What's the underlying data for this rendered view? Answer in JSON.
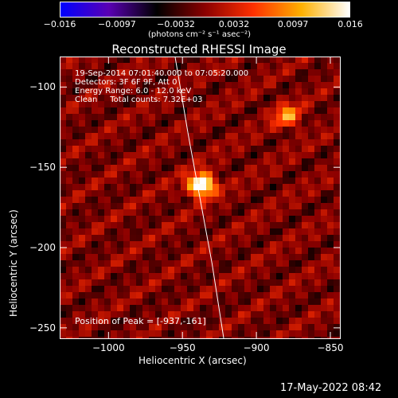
{
  "chart_data": {
    "type": "heatmap",
    "title": "Reconstructed RHESSI Image",
    "xlabel": "Heliocentric X (arcsec)",
    "ylabel": "Heliocentric Y (arcsec)",
    "xlim": [
      -1033,
      -843
    ],
    "ylim": [
      -257,
      -81
    ],
    "x_ticks": [
      {
        "label": "−1000",
        "value": -1000
      },
      {
        "label": "−950",
        "value": -950
      },
      {
        "label": "−900",
        "value": -900
      },
      {
        "label": "−850",
        "value": -850
      }
    ],
    "y_ticks": [
      {
        "label": "−100",
        "value": -100
      },
      {
        "label": "−150",
        "value": -150
      },
      {
        "label": "−200",
        "value": -200
      },
      {
        "label": "−250",
        "value": -250
      }
    ],
    "colorbar": {
      "min": -0.016,
      "max": 0.016,
      "ticks": [
        {
          "label": "−0.016",
          "value": -0.016
        },
        {
          "label": "−0.0097",
          "value": -0.0097
        },
        {
          "label": "−0.0032",
          "value": -0.0032
        },
        {
          "label": "0.0032",
          "value": 0.0032
        },
        {
          "label": "0.0097",
          "value": 0.0097
        },
        {
          "label": "0.016",
          "value": 0.016
        }
      ],
      "unit_label": "(photons cm⁻² s⁻¹ asec⁻²)",
      "colors": [
        "#0000ff",
        "#5a00b4",
        "#000000",
        "#8b0000",
        "#ff3000",
        "#ffb000",
        "#ffffff"
      ]
    },
    "info_lines": [
      "19-Sep-2014 07:01:40.000 to 07:05:20.000",
      "Detectors: 3F 6F 9F, Att 0",
      "Energy Range: 6.0 - 12.0 keV",
      "Clean     Total counts: 7.32E+03"
    ],
    "sources": [
      {
        "x": -937,
        "y": -161,
        "peak": 0.016
      },
      {
        "x": -879,
        "y": -118,
        "peak": 0.008
      }
    ],
    "peak_text": "Position of Peak = [-937,-161]",
    "limb": "solar limb (white line)"
  },
  "timestamp": "17-May-2022 08:42"
}
